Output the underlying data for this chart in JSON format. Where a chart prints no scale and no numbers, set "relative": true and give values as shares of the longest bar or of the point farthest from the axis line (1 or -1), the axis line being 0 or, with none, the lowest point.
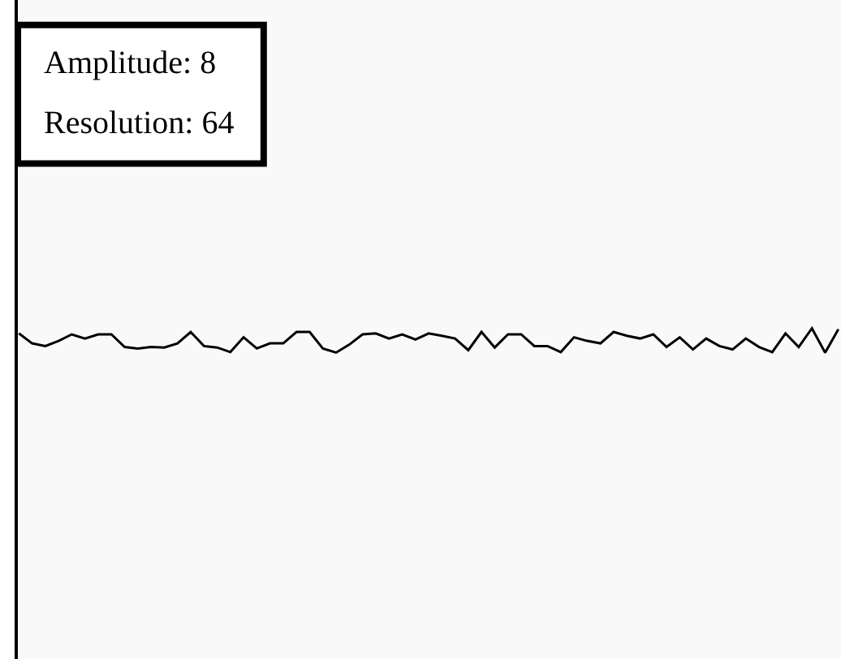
{
  "chart_data": {
    "type": "line",
    "relative": true,
    "annotations": [
      "Amplitude: 8",
      "Resolution: 64"
    ],
    "categories": [
      null,
      null,
      null,
      null,
      null,
      null,
      null,
      null,
      null,
      null,
      null,
      null,
      null,
      null,
      null,
      null,
      null,
      null,
      null,
      null,
      null,
      null,
      null,
      null,
      null,
      null,
      null,
      null,
      null,
      null,
      null,
      null,
      null,
      null,
      null,
      null,
      null,
      null,
      null,
      null,
      null,
      null,
      null,
      null,
      null,
      null,
      null,
      null,
      null,
      null,
      null,
      null,
      null,
      null,
      null,
      null,
      null,
      null,
      null,
      null,
      null,
      null,
      null
    ],
    "series": [
      {
        "color": "#000000",
        "values": [
          0.79,
          0.38,
          0.27,
          0.48,
          0.75,
          0.58,
          0.75,
          0.75,
          0.23,
          0.17,
          0.23,
          0.21,
          0.38,
          0.85,
          0.27,
          0.21,
          0.02,
          0.63,
          0.17,
          0.38,
          0.38,
          0.85,
          0.85,
          0.17,
          0,
          0.33,
          0.75,
          0.79,
          0.58,
          0.75,
          0.54,
          0.79,
          0.69,
          0.58,
          0.1,
          0.85,
          0.21,
          0.75,
          0.75,
          0.27,
          0.27,
          0.02,
          0.63,
          0.48,
          0.38,
          0.85,
          0.69,
          0.58,
          0.75,
          0.23,
          0.63,
          0.13,
          0.58,
          0.27,
          0.13,
          0.58,
          0.23,
          0.02,
          0.79,
          0.23,
          1,
          0,
          0.96
        ]
      }
    ],
    "marker": "none",
    "line_style": "solid"
  }
}
